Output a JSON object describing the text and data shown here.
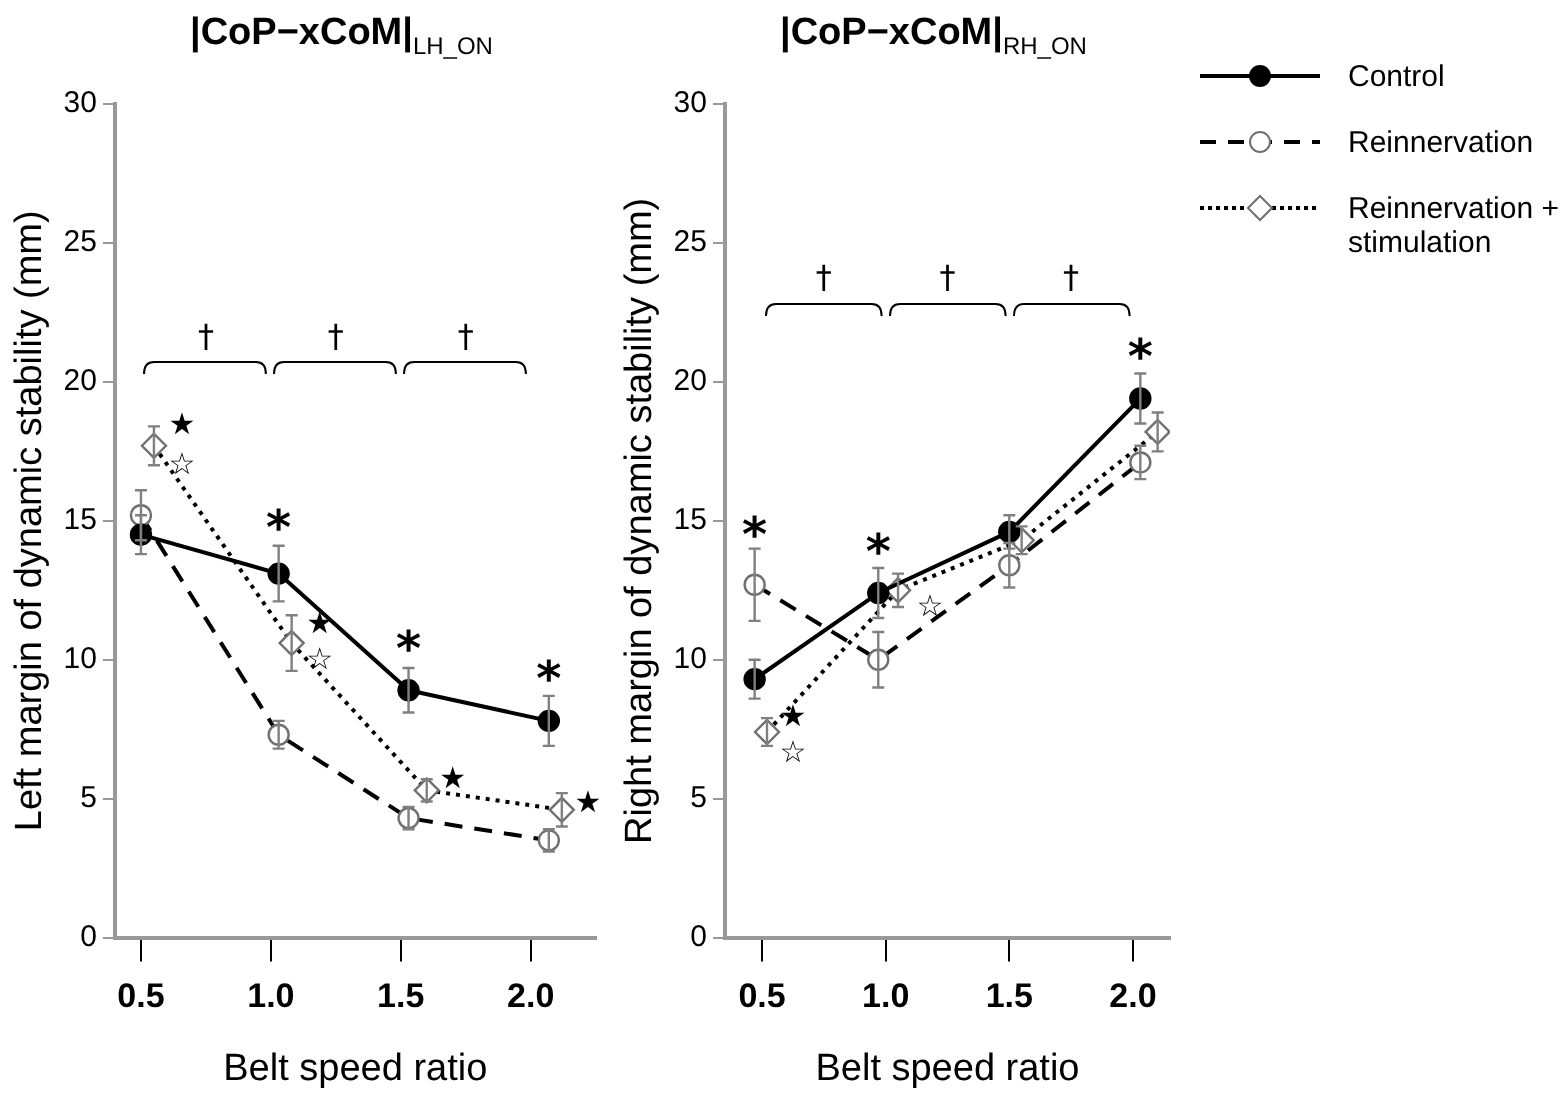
{
  "chart_data": [
    {
      "type": "line",
      "title": "|CoP−xCoM|$_{LH_ON}$",
      "xlabel": "Belt speed ratio",
      "ylabel": "Left margin of dynamic stability (mm)",
      "xlim": [
        0.4,
        2.25
      ],
      "xticks": [
        {
          "value": 0.5,
          "label": "0.5"
        },
        {
          "value": 1,
          "label": "1.0"
        },
        {
          "value": 1.5,
          "label": "1.5"
        },
        {
          "value": 2,
          "label": "2.0"
        }
      ],
      "ylim": [
        0,
        30
      ],
      "yticks": [
        0,
        5,
        10,
        15,
        20,
        25,
        30
      ],
      "grid": false,
      "legend": "right",
      "series": [
        {
          "name": "Control",
          "color": "#000000",
          "marker": "circle",
          "line_style": "solid",
          "x": [
            0.5,
            1.03,
            1.53,
            2.07
          ],
          "values": [
            14.5,
            13.1,
            8.9,
            7.8
          ],
          "errors": [
            0.7,
            1.0,
            0.8,
            0.9
          ]
        },
        {
          "name": "Reinnervation",
          "color": "#000000",
          "marker": "circle",
          "line_style": "dashed",
          "x": [
            0.5,
            1.03,
            1.53,
            2.07
          ],
          "values": [
            15.2,
            7.3,
            4.3,
            3.5
          ],
          "errors": [
            0.9,
            0.5,
            0.4,
            0.4
          ]
        },
        {
          "name": "Reinnervation + stimulation",
          "color": "#000000",
          "marker": "diamond",
          "line_style": "dotted",
          "x": [
            0.55,
            1.08,
            1.6,
            2.12
          ],
          "values": [
            17.7,
            10.6,
            5.3,
            4.6
          ],
          "errors": [
            0.7,
            1.0,
            0.4,
            0.6
          ]
        }
      ],
      "annotations": [
        "†",
        "†",
        "†",
        {
          "text": "★",
          "x": 0.55,
          "y": 17.7
        },
        {
          "text": "☆",
          "x": 0.55,
          "y": 17.7
        },
        {
          "text": "*",
          "x": 1.03,
          "y": 13.1
        },
        {
          "text": "★",
          "x": 1.08,
          "y": 10.6
        },
        {
          "text": "☆",
          "x": 1.08,
          "y": 10.6
        },
        {
          "text": "*",
          "x": 1.53,
          "y": 8.9
        },
        {
          "text": "★",
          "x": 1.6,
          "y": 5.3
        },
        {
          "text": "*",
          "x": 2.07,
          "y": 7.8
        },
        {
          "text": "★",
          "x": 2.12,
          "y": 4.6
        }
      ]
    },
    {
      "type": "line",
      "title": "|CoP−xCoM|$_{RH_ON}$",
      "xlabel": "Belt speed ratio",
      "ylabel": "Right margin of dynamic stability (mm)",
      "xlim": [
        0.35,
        2.15
      ],
      "xticks": [
        {
          "value": 0.5,
          "label": "0.5"
        },
        {
          "value": 1,
          "label": "1.0"
        },
        {
          "value": 1.5,
          "label": "1.5"
        },
        {
          "value": 2,
          "label": "2.0"
        }
      ],
      "ylim": [
        0,
        30
      ],
      "yticks": [
        0,
        5,
        10,
        15,
        20,
        25,
        30
      ],
      "grid": false,
      "legend": "right",
      "series": [
        {
          "name": "Control",
          "color": "#000000",
          "marker": "circle",
          "line_style": "solid",
          "x": [
            0.47,
            0.97,
            1.5,
            2.03
          ],
          "values": [
            9.3,
            12.4,
            14.6,
            19.4
          ],
          "errors": [
            0.7,
            0.9,
            0.6,
            0.9
          ]
        },
        {
          "name": "Reinnervation",
          "color": "#000000",
          "marker": "circle",
          "line_style": "dashed",
          "x": [
            0.47,
            0.97,
            1.5,
            2.03
          ],
          "values": [
            12.7,
            10.0,
            13.4,
            17.1
          ],
          "errors": [
            1.3,
            1.0,
            0.8,
            0.6
          ]
        },
        {
          "name": "Reinnervation + stimulation",
          "color": "#000000",
          "marker": "diamond",
          "line_style": "dotted",
          "x": [
            0.52,
            1.05,
            1.55,
            2.1
          ],
          "values": [
            7.4,
            12.5,
            14.3,
            18.2
          ],
          "errors": [
            0.5,
            0.6,
            0.5,
            0.7
          ]
        }
      ],
      "annotations": [
        "†",
        "†",
        "†",
        {
          "text": "*",
          "x": 0.47,
          "y": 12.7
        },
        {
          "text": "*",
          "x": 0.97,
          "y": 12.4
        },
        {
          "text": "*",
          "x": 2.03,
          "y": 19.4
        },
        {
          "text": "★",
          "x": 0.52,
          "y": 7.4
        },
        {
          "text": "☆",
          "x": 0.52,
          "y": 7.4
        },
        {
          "text": "☆",
          "x": 1.05,
          "y": 12.5
        }
      ]
    }
  ]
}
